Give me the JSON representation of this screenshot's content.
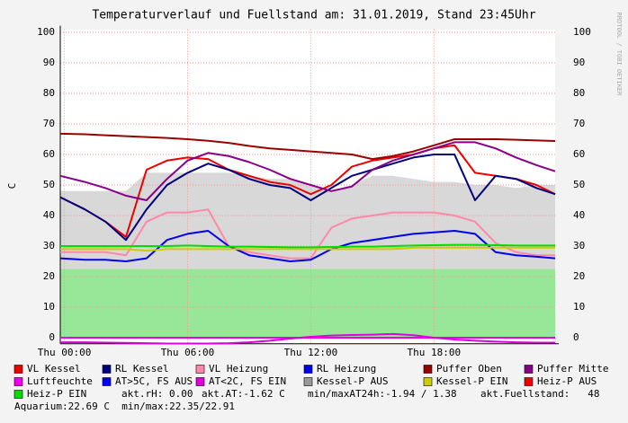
{
  "chart_data": {
    "type": "line",
    "title": "Temperaturverlauf und Fuellstand am: 31.01.2019, Stand 23:45Uhr",
    "y_label": "C",
    "watermark": "RRDTOOL / TOBI OETIKER",
    "x": [
      -0.2,
      1,
      2,
      3,
      4,
      5,
      6,
      7,
      8,
      9,
      10,
      11,
      12,
      13,
      14,
      15,
      16,
      17,
      18,
      19,
      20,
      21,
      22,
      23,
      23.9
    ],
    "xlim": [
      -0.2,
      23.9
    ],
    "xticks": [
      {
        "value": 0,
        "label": "Thu 00:00"
      },
      {
        "value": 6,
        "label": "Thu 06:00"
      },
      {
        "value": 12,
        "label": "Thu 12:00"
      },
      {
        "value": 18,
        "label": "Thu 18:00"
      }
    ],
    "ylim": [
      -2,
      101
    ],
    "yticks": [
      0,
      10,
      20,
      30,
      40,
      50,
      60,
      70,
      80,
      90,
      100
    ],
    "grid": true,
    "background_areas": [
      {
        "color": "#98e698",
        "values": [
          22.5,
          22.5,
          22.5,
          22.5,
          22.5,
          22.5,
          22.5,
          22.5,
          22.5,
          22.5,
          22.5,
          22.5,
          22.5,
          22.5,
          22.5,
          22.5,
          22.5,
          22.5,
          22.5,
          22.5,
          22.5,
          22.5,
          22.5,
          22.5,
          22.5
        ]
      }
    ],
    "series": [
      {
        "name": "VL Kessel",
        "color": "#ee0000",
        "style": "line",
        "values": [
          46,
          42,
          38,
          33,
          55,
          58,
          59,
          58.5,
          55,
          53,
          51,
          50,
          47,
          50,
          56,
          58,
          59,
          60,
          62,
          63,
          54,
          53,
          52,
          50,
          47
        ]
      },
      {
        "name": "RL Kessel",
        "color": "#00007f",
        "style": "line",
        "values": [
          46,
          42,
          38,
          32,
          42,
          50,
          54,
          57,
          55,
          52,
          50,
          49,
          45,
          49,
          53,
          55,
          57,
          59,
          60,
          60,
          45,
          53,
          52,
          49,
          47
        ]
      },
      {
        "name": "VL Heizung",
        "color": "#ff88aa",
        "style": "line",
        "values": [
          28,
          28,
          28,
          27,
          38,
          41,
          41,
          42,
          30,
          28,
          27,
          26,
          26,
          36,
          39,
          40,
          41,
          41,
          41,
          40,
          38,
          31,
          28,
          27,
          27
        ]
      },
      {
        "name": "RL Heizung",
        "color": "#0000ee",
        "style": "line",
        "values": [
          26,
          25.5,
          25.5,
          25,
          26,
          32,
          34,
          35,
          30,
          27,
          26,
          25,
          25.5,
          29,
          31,
          32,
          33,
          34,
          34.5,
          35,
          34,
          28,
          27,
          26.5,
          26
        ]
      },
      {
        "name": "Puffer Oben",
        "color": "#9b0000",
        "style": "line",
        "values": [
          66.8,
          66.6,
          66.3,
          66,
          65.7,
          65.4,
          65,
          64.5,
          63.8,
          62.8,
          62,
          61.5,
          61,
          60.5,
          60,
          58.5,
          59.5,
          61,
          63,
          65,
          65,
          65,
          64.8,
          64.6,
          64.4
        ]
      },
      {
        "name": "Puffer Mitte",
        "color": "#880088",
        "style": "line",
        "values": [
          53,
          51,
          49,
          46.5,
          45,
          52,
          58,
          60.5,
          59.5,
          57.5,
          55,
          52,
          50,
          48,
          49.5,
          55,
          58,
          60,
          62,
          64,
          64,
          62,
          59,
          56.5,
          54.5
        ]
      },
      {
        "name": "Luftfeuchte",
        "color": "#ee00ee",
        "style": "line",
        "values": [
          0,
          0,
          0,
          0,
          0,
          0,
          0,
          0,
          0,
          0,
          0,
          0,
          0,
          0,
          0,
          0,
          0,
          0,
          0,
          0,
          0,
          0,
          0,
          0,
          0
        ]
      },
      {
        "name": "AT>5C, FS AUS",
        "color": "#0000ff"
      },
      {
        "name": "AT<2C, FS EIN",
        "color": "#dd00dd",
        "style": "line",
        "values": [
          -1.5,
          -1.5,
          -1.6,
          -1.7,
          -1.8,
          -1.9,
          -1.9,
          -1.9,
          -1.8,
          -1.5,
          -1,
          -0.3,
          0.3,
          0.7,
          0.9,
          1,
          1.2,
          0.8,
          0,
          -0.6,
          -1,
          -1.3,
          -1.5,
          -1.6,
          -1.6
        ]
      },
      {
        "name": "Kessel-P AUS",
        "color": "#999999",
        "style": "area",
        "fill": "#d8d8d8",
        "values": [
          48,
          48,
          48,
          48,
          54,
          54,
          54,
          54,
          54,
          53,
          52,
          52,
          50,
          48,
          50,
          53,
          53,
          52,
          51,
          51,
          50,
          50,
          49,
          50,
          50
        ]
      },
      {
        "name": "Kessel-P EIN",
        "color": "#cccc00",
        "style": "line",
        "values": [
          29,
          29,
          29,
          29,
          28.5,
          29,
          29,
          29,
          29,
          29,
          29,
          29,
          29,
          29,
          29,
          29,
          29,
          29.5,
          29.5,
          29.5,
          29.5,
          29.5,
          29.5,
          29.5,
          29.5
        ]
      },
      {
        "name": "Heiz-P AUS",
        "color": "#ee0000"
      },
      {
        "name": "Heiz-P EIN",
        "color": "#00dd00",
        "style": "line",
        "values": [
          30,
          30,
          30,
          30,
          30,
          30,
          30.2,
          30,
          29.8,
          29.8,
          29.7,
          29.6,
          29.6,
          29.7,
          29.8,
          29.8,
          30,
          30.2,
          30.3,
          30.4,
          30.4,
          30.3,
          30.2,
          30.2,
          30.2
        ]
      }
    ],
    "notes": [
      "akt.rH: 0.00",
      "akt.AT:-1.62 C",
      "min/maxAT24h:-1.94 / 1.38",
      "akt.Fuellstand:   48",
      "Aquarium:22.69 C  min/max:22.35/22.91"
    ]
  }
}
